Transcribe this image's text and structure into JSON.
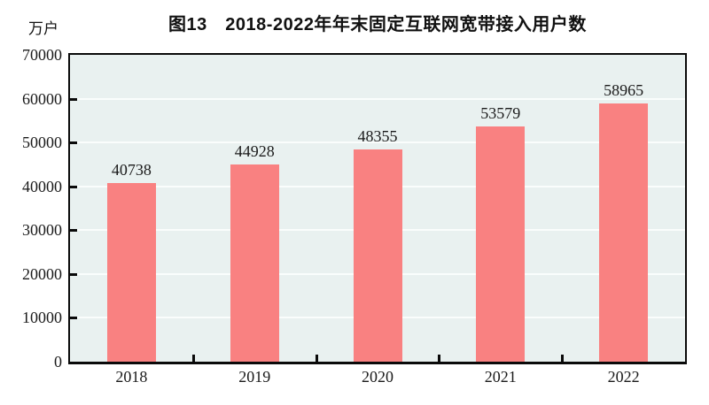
{
  "chart_data": {
    "type": "bar",
    "title": "图13　2018-2022年年末固定互联网宽带接入用户数",
    "ylabel": "万户",
    "xlabel": "",
    "categories": [
      "2018",
      "2019",
      "2020",
      "2021",
      "2022"
    ],
    "values": [
      40738,
      44928,
      48355,
      53579,
      58965
    ],
    "ylim": [
      0,
      70000
    ],
    "yticks": [
      0,
      10000,
      20000,
      30000,
      40000,
      50000,
      60000,
      70000
    ],
    "grid": true,
    "legend": "none",
    "data_labels": true,
    "colors": {
      "bar": "#f98181",
      "plot_background": "#e9f1f0",
      "gridline": "#fafdfc",
      "axis_frame": "#0a0a0a",
      "text": "#1a1a1a"
    }
  }
}
